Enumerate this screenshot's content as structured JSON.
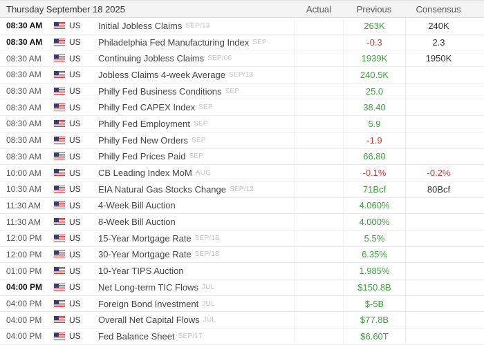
{
  "header": {
    "date_label": "Thursday September 18 2025",
    "columns": {
      "actual": "Actual",
      "previous": "Previous",
      "consensus": "Consensus"
    }
  },
  "colors": {
    "green": "#3f9e3f",
    "red": "#cf3b3b",
    "neutral": "#333333"
  },
  "rows": [
    {
      "time": "08:30 AM",
      "bold": true,
      "country": "US",
      "event": "Initial Jobless Claims",
      "ref": "SEP/13",
      "actual": "",
      "previous": "263K",
      "prev_color": "green",
      "consensus": "240K",
      "cons_color": "neutral"
    },
    {
      "time": "08:30 AM",
      "bold": true,
      "country": "US",
      "event": "Philadelphia Fed Manufacturing Index",
      "ref": "SEP",
      "actual": "",
      "previous": "-0.3",
      "prev_color": "red",
      "consensus": "2.3",
      "cons_color": "neutral"
    },
    {
      "time": "08:30 AM",
      "bold": false,
      "country": "US",
      "event": "Continuing Jobless Claims",
      "ref": "SEP/06",
      "actual": "",
      "previous": "1939K",
      "prev_color": "green",
      "consensus": "1950K",
      "cons_color": "neutral"
    },
    {
      "time": "08:30 AM",
      "bold": false,
      "country": "US",
      "event": "Jobless Claims 4-week Average",
      "ref": "SEP/13",
      "actual": "",
      "previous": "240.5K",
      "prev_color": "green",
      "consensus": "",
      "cons_color": "neutral"
    },
    {
      "time": "08:30 AM",
      "bold": false,
      "country": "US",
      "event": "Philly Fed Business Conditions",
      "ref": "SEP",
      "actual": "",
      "previous": "25.0",
      "prev_color": "green",
      "consensus": "",
      "cons_color": "neutral"
    },
    {
      "time": "08:30 AM",
      "bold": false,
      "country": "US",
      "event": "Philly Fed CAPEX Index",
      "ref": "SEP",
      "actual": "",
      "previous": "38.40",
      "prev_color": "green",
      "consensus": "",
      "cons_color": "neutral"
    },
    {
      "time": "08:30 AM",
      "bold": false,
      "country": "US",
      "event": "Philly Fed Employment",
      "ref": "SEP",
      "actual": "",
      "previous": "5.9",
      "prev_color": "green",
      "consensus": "",
      "cons_color": "neutral"
    },
    {
      "time": "08:30 AM",
      "bold": false,
      "country": "US",
      "event": "Philly Fed New Orders",
      "ref": "SEP",
      "actual": "",
      "previous": "-1.9",
      "prev_color": "red",
      "consensus": "",
      "cons_color": "neutral"
    },
    {
      "time": "08:30 AM",
      "bold": false,
      "country": "US",
      "event": "Philly Fed Prices Paid",
      "ref": "SEP",
      "actual": "",
      "previous": "66.80",
      "prev_color": "green",
      "consensus": "",
      "cons_color": "neutral"
    },
    {
      "time": "10:00 AM",
      "bold": false,
      "country": "US",
      "event": "CB Leading Index MoM",
      "ref": "AUG",
      "actual": "",
      "previous": "-0.1%",
      "prev_color": "red",
      "consensus": "-0.2%",
      "cons_color": "red"
    },
    {
      "time": "10:30 AM",
      "bold": false,
      "country": "US",
      "event": "EIA Natural Gas Stocks Change",
      "ref": "SEP/12",
      "actual": "",
      "previous": "71Bcf",
      "prev_color": "green",
      "consensus": "80Bcf",
      "cons_color": "neutral"
    },
    {
      "time": "11:30 AM",
      "bold": false,
      "country": "US",
      "event": "4-Week Bill Auction",
      "ref": "",
      "actual": "",
      "previous": "4.060%",
      "prev_color": "green",
      "consensus": "",
      "cons_color": "neutral"
    },
    {
      "time": "11:30 AM",
      "bold": false,
      "country": "US",
      "event": "8-Week Bill Auction",
      "ref": "",
      "actual": "",
      "previous": "4.000%",
      "prev_color": "green",
      "consensus": "",
      "cons_color": "neutral"
    },
    {
      "time": "12:00 PM",
      "bold": false,
      "country": "US",
      "event": "15-Year Mortgage Rate",
      "ref": "SEP/18",
      "actual": "",
      "previous": "5.5%",
      "prev_color": "green",
      "consensus": "",
      "cons_color": "neutral"
    },
    {
      "time": "12:00 PM",
      "bold": false,
      "country": "US",
      "event": "30-Year Mortgage Rate",
      "ref": "SEP/18",
      "actual": "",
      "previous": "6.35%",
      "prev_color": "green",
      "consensus": "",
      "cons_color": "neutral"
    },
    {
      "time": "01:00 PM",
      "bold": false,
      "country": "US",
      "event": "10-Year TIPS Auction",
      "ref": "",
      "actual": "",
      "previous": "1.985%",
      "prev_color": "green",
      "consensus": "",
      "cons_color": "neutral"
    },
    {
      "time": "04:00 PM",
      "bold": true,
      "country": "US",
      "event": "Net Long-term TIC Flows",
      "ref": "JUL",
      "actual": "",
      "previous": "$150.8B",
      "prev_color": "green",
      "consensus": "",
      "cons_color": "neutral"
    },
    {
      "time": "04:00 PM",
      "bold": false,
      "country": "US",
      "event": "Foreign Bond Investment",
      "ref": "JUL",
      "actual": "",
      "previous": "$-5B",
      "prev_color": "green",
      "consensus": "",
      "cons_color": "neutral"
    },
    {
      "time": "04:00 PM",
      "bold": false,
      "country": "US",
      "event": "Overall Net Capital Flows",
      "ref": "JUL",
      "actual": "",
      "previous": "$77.8B",
      "prev_color": "green",
      "consensus": "",
      "cons_color": "neutral"
    },
    {
      "time": "04:00 PM",
      "bold": false,
      "country": "US",
      "event": "Fed Balance Sheet",
      "ref": "SEP/17",
      "actual": "",
      "previous": "$6.60T",
      "prev_color": "green",
      "consensus": "",
      "cons_color": "neutral"
    }
  ]
}
